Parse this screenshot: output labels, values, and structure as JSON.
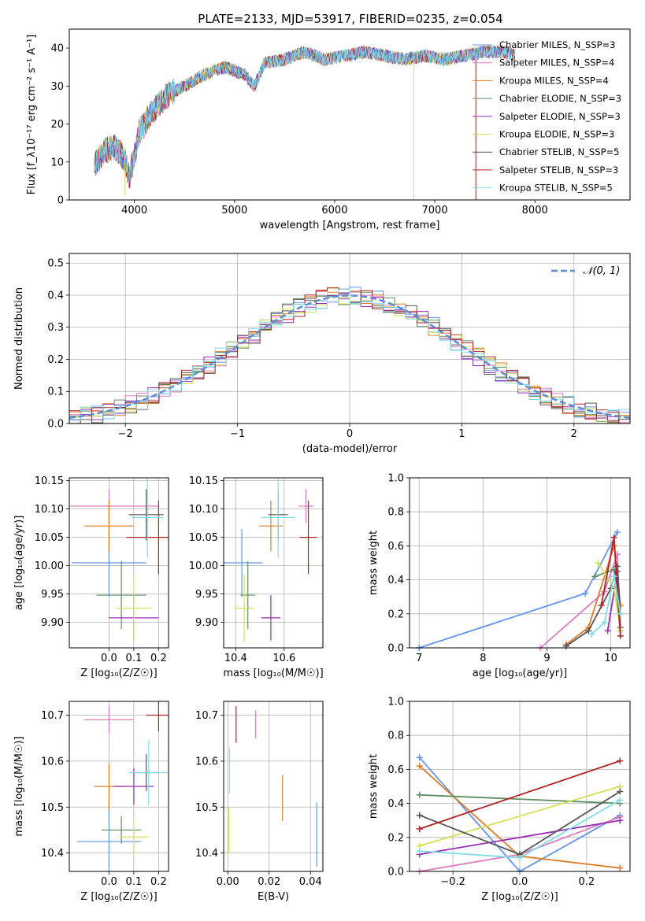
{
  "chart_data": [
    {
      "id": "spectrum",
      "type": "line",
      "title": "PLATE=2133, MJD=53917, FIBERID=0235, z=0.054",
      "xlabel": "wavelength [Angstrom, rest frame]",
      "ylabel": "Flux [f_λ10⁻¹⁷ erg cm⁻² s⁻¹ A⁻¹]",
      "xlim": [
        3350,
        8950
      ],
      "ylim": [
        0,
        45
      ],
      "xticks": [
        4000,
        5000,
        6000,
        7000,
        8000
      ],
      "yticks": [
        0,
        10,
        20,
        30,
        40
      ],
      "legend_position": "top-right",
      "continuum": {
        "x": [
          3600,
          3700,
          3800,
          3900,
          3950,
          4050,
          4200,
          4350,
          4500,
          4700,
          4900,
          5100,
          5200,
          5300,
          5500,
          5700,
          5900,
          6100,
          6300,
          6500,
          6700,
          6900,
          7100,
          7300,
          7500,
          7700,
          7800
        ],
        "y": [
          9,
          13,
          14,
          11,
          6,
          18,
          24,
          28,
          30,
          33,
          35,
          33,
          30,
          36,
          37,
          39,
          37,
          38,
          39,
          38,
          37,
          38,
          37,
          38,
          39,
          39,
          38
        ]
      },
      "series": [
        {
          "name": "Chabrier MILES, N_SSP=3",
          "color": "#6495ED"
        },
        {
          "name": "Salpeter MILES, N_SSP=4",
          "color": "#E07BC0"
        },
        {
          "name": "Kroupa MILES, N_SSP=4",
          "color": "#E07B24"
        },
        {
          "name": "Chabrier ELODIE, N_SSP=3",
          "color": "#5E8F5E"
        },
        {
          "name": "Salpeter ELODIE, N_SSP=3",
          "color": "#9B2DB5"
        },
        {
          "name": "Kroupa ELODIE, N_SSP=3",
          "color": "#D4E157"
        },
        {
          "name": "Chabrier STELIB, N_SSP=5",
          "color": "#555555"
        },
        {
          "name": "Salpeter STELIB, N_SSP=3",
          "color": "#B22222"
        },
        {
          "name": "Kroupa STELIB, N_SSP=5",
          "color": "#80DEEA"
        }
      ]
    },
    {
      "id": "residuals",
      "type": "line",
      "xlabel": "(data-model)/error",
      "ylabel": "Normed distribution",
      "xlim": [
        -2.5,
        2.5
      ],
      "ylim": [
        0,
        0.53
      ],
      "xticks": [
        -2,
        -1,
        0,
        1,
        2
      ],
      "yticks": [
        0.0,
        0.1,
        0.2,
        0.3,
        0.4,
        0.5
      ],
      "grid": true,
      "legend_position": "top-right",
      "legend": "𝒩(0, 1)",
      "normal_curve_color": "#5B8DD6"
    },
    {
      "id": "age_vs_Z",
      "type": "scatter",
      "xlabel": "Z [log₁₀(Z/Z☉)]",
      "ylabel": "age  [log₁₀(age/yr)]",
      "xlim": [
        -0.16,
        0.24
      ],
      "ylim": [
        9.855,
        10.155
      ],
      "xticks": [
        0.0,
        0.1,
        0.2
      ],
      "xticklabels": [
        "0.0",
        "0.1",
        "0.2"
      ],
      "yticks": [
        9.9,
        9.95,
        10.0,
        10.05,
        10.1,
        10.15
      ],
      "yticklabels": [
        "9.90",
        "9.95",
        "10.00",
        "10.05",
        "10.10",
        "10.15"
      ],
      "grid": true,
      "points": [
        {
          "x": -0.0,
          "y": 10.005,
          "xerr": 0.15,
          "yerr": 0.06,
          "color": "#6495ED"
        },
        {
          "x": 0.0,
          "y": 10.105,
          "xerr": 0.2,
          "yerr": 0.03,
          "color": "#E07BC0"
        },
        {
          "x": 0.0,
          "y": 10.07,
          "xerr": 0.1,
          "yerr": 0.045,
          "color": "#E07B24"
        },
        {
          "x": 0.05,
          "y": 9.948,
          "xerr": 0.1,
          "yerr": 0.06,
          "color": "#5E8F5E"
        },
        {
          "x": 0.1,
          "y": 9.908,
          "xerr": 0.1,
          "yerr": 0.04,
          "color": "#9B2DB5"
        },
        {
          "x": 0.1,
          "y": 9.925,
          "xerr": 0.07,
          "yerr": 0.06,
          "color": "#D4E157"
        },
        {
          "x": 0.15,
          "y": 10.09,
          "xerr": 0.07,
          "yerr": 0.045,
          "color": "#555555"
        },
        {
          "x": 0.2,
          "y": 10.05,
          "xerr": 0.13,
          "yerr": 0.065,
          "color": "#B22222"
        },
        {
          "x": 0.155,
          "y": 10.085,
          "xerr": 0.065,
          "yerr": 0.07,
          "color": "#80DEEA"
        }
      ]
    },
    {
      "id": "age_vs_mass",
      "type": "scatter",
      "xlabel": "mass [log₁₀(M/M☉)]",
      "ylabel": "",
      "xlim": [
        10.35,
        10.76
      ],
      "ylim": [
        9.855,
        10.155
      ],
      "xticks": [
        10.4,
        10.6
      ],
      "xticklabels": [
        "10.4",
        "10.6"
      ],
      "yticks": [
        9.9,
        9.95,
        10.0,
        10.05,
        10.1,
        10.15
      ],
      "yticklabels": [
        "9.90",
        "9.95",
        "10.00",
        "10.05",
        "10.10",
        "10.15"
      ],
      "grid": true,
      "points": [
        {
          "x": 10.425,
          "y": 10.005,
          "xerr": 0.085,
          "yerr": 0.06,
          "color": "#6495ED"
        },
        {
          "x": 10.69,
          "y": 10.105,
          "xerr": 0.03,
          "yerr": 0.03,
          "color": "#E07BC0"
        },
        {
          "x": 10.545,
          "y": 10.07,
          "xerr": 0.05,
          "yerr": 0.045,
          "color": "#E07B24"
        },
        {
          "x": 10.45,
          "y": 9.948,
          "xerr": 0.03,
          "yerr": 0.06,
          "color": "#5E8F5E"
        },
        {
          "x": 10.545,
          "y": 9.908,
          "xerr": 0.04,
          "yerr": 0.04,
          "color": "#9B2DB5"
        },
        {
          "x": 10.435,
          "y": 9.925,
          "xerr": 0.04,
          "yerr": 0.06,
          "color": "#D4E157"
        },
        {
          "x": 10.575,
          "y": 10.09,
          "xerr": 0.04,
          "yerr": 0.045,
          "color": "#555555"
        },
        {
          "x": 10.7,
          "y": 10.05,
          "xerr": 0.035,
          "yerr": 0.065,
          "color": "#B22222"
        },
        {
          "x": 10.575,
          "y": 10.085,
          "xerr": 0.07,
          "yerr": 0.07,
          "color": "#80DEEA"
        }
      ]
    },
    {
      "id": "massweight_vs_age",
      "type": "line",
      "xlabel": "age  [log₁₀(age/yr)]",
      "ylabel": "mass weight",
      "xlim": [
        6.85,
        10.3
      ],
      "ylim": [
        0,
        1
      ],
      "xticks": [
        7,
        8,
        9,
        10
      ],
      "yticks": [
        0.0,
        0.2,
        0.4,
        0.6,
        0.8,
        1.0
      ],
      "grid": true,
      "series": [
        {
          "color": "#6495ED",
          "x": [
            7.0,
            9.6,
            10.1
          ],
          "y": [
            0.0,
            0.32,
            0.68
          ]
        },
        {
          "color": "#E07BC0",
          "x": [
            8.9,
            9.9,
            10.1,
            10.15
          ],
          "y": [
            0.0,
            0.33,
            0.55,
            0.12
          ]
        },
        {
          "color": "#E07B24",
          "x": [
            9.3,
            9.65,
            10.05,
            10.15
          ],
          "y": [
            0.02,
            0.12,
            0.6,
            0.25
          ]
        },
        {
          "color": "#5E8F5E",
          "x": [
            9.75,
            10.05,
            10.15
          ],
          "y": [
            0.42,
            0.46,
            0.12
          ]
        },
        {
          "color": "#9B2DB5",
          "x": [
            9.95,
            10.1,
            10.15
          ],
          "y": [
            0.1,
            0.45,
            0.1
          ]
        },
        {
          "color": "#D4E157",
          "x": [
            9.8,
            10.05,
            10.15
          ],
          "y": [
            0.5,
            0.35,
            0.1
          ]
        },
        {
          "color": "#555555",
          "x": [
            9.3,
            9.65,
            10.0,
            10.1,
            10.15
          ],
          "y": [
            0.01,
            0.1,
            0.35,
            0.48,
            0.2
          ]
        },
        {
          "color": "#B22222",
          "x": [
            9.85,
            10.05,
            10.15
          ],
          "y": [
            0.25,
            0.65,
            0.07
          ]
        },
        {
          "color": "#80DEEA",
          "x": [
            9.7,
            9.9,
            10.05,
            10.15
          ],
          "y": [
            0.08,
            0.15,
            0.42,
            0.2
          ]
        }
      ]
    },
    {
      "id": "mass_vs_Z",
      "type": "scatter",
      "xlabel": "Z [log₁₀(Z/Z☉)]",
      "ylabel": "mass [log₁₀(M/M☉)]",
      "xlim": [
        -0.16,
        0.24
      ],
      "ylim": [
        10.36,
        10.73
      ],
      "xticks": [
        0.0,
        0.1,
        0.2
      ],
      "xticklabels": [
        "0.0",
        "0.1",
        "0.2"
      ],
      "yticks": [
        10.4,
        10.5,
        10.6,
        10.7
      ],
      "yticklabels": [
        "10.4",
        "10.5",
        "10.6",
        "10.7"
      ],
      "grid": true,
      "points": [
        {
          "x": -0.0,
          "y": 10.425,
          "xerr": 0.13,
          "yerr": 0.085,
          "color": "#6495ED"
        },
        {
          "x": 0.0,
          "y": 10.69,
          "xerr": 0.1,
          "yerr": 0.03,
          "color": "#E07BC0"
        },
        {
          "x": 0.0,
          "y": 10.545,
          "xerr": 0.06,
          "yerr": 0.05,
          "color": "#E07B24"
        },
        {
          "x": 0.05,
          "y": 10.45,
          "xerr": 0.08,
          "yerr": 0.03,
          "color": "#5E8F5E"
        },
        {
          "x": 0.1,
          "y": 10.545,
          "xerr": 0.08,
          "yerr": 0.04,
          "color": "#9B2DB5"
        },
        {
          "x": 0.1,
          "y": 10.435,
          "xerr": 0.06,
          "yerr": 0.04,
          "color": "#D4E157"
        },
        {
          "x": 0.15,
          "y": 10.575,
          "xerr": 0.05,
          "yerr": 0.04,
          "color": "#555555"
        },
        {
          "x": 0.2,
          "y": 10.7,
          "xerr": 0.05,
          "yerr": 0.035,
          "color": "#B22222"
        },
        {
          "x": 0.16,
          "y": 10.575,
          "xerr": 0.08,
          "yerr": 0.07,
          "color": "#80DEEA"
        }
      ]
    },
    {
      "id": "mass_vs_ebv",
      "type": "scatter",
      "xlabel": "E(B-V)",
      "ylabel": "",
      "xlim": [
        -0.002,
        0.046
      ],
      "ylim": [
        10.36,
        10.73
      ],
      "xticks": [
        0.0,
        0.02,
        0.04
      ],
      "xticklabels": [
        "0.00",
        "0.02",
        "0.04"
      ],
      "yticks": [
        10.4,
        10.5,
        10.6,
        10.7
      ],
      "yticklabels": [
        "10.4",
        "10.5",
        "10.6",
        "10.7"
      ],
      "grid": true,
      "points": [
        {
          "x": 0.043,
          "y": 10.44,
          "xerr": 0,
          "yerr": 0.07,
          "color": "#6495ED"
        },
        {
          "x": 0.0135,
          "y": 10.68,
          "xerr": 0,
          "yerr": 0.03,
          "color": "#E07BC0"
        },
        {
          "x": 0.0265,
          "y": 10.52,
          "xerr": 0,
          "yerr": 0.05,
          "color": "#E07B24"
        },
        {
          "x": 0.0005,
          "y": 10.45,
          "xerr": 0,
          "yerr": 0.05,
          "color": "#D4E157"
        },
        {
          "x": 0.004,
          "y": 10.68,
          "xerr": 0,
          "yerr": 0.04,
          "color": "#B22222"
        },
        {
          "x": 0.0008,
          "y": 10.58,
          "xerr": 0,
          "yerr": 0.05,
          "color": "#80DEEA"
        }
      ]
    },
    {
      "id": "massweight_vs_Z",
      "type": "line",
      "xlabel": "Z [log₁₀(Z/Z☉)]",
      "ylabel": "mass weight",
      "xlim": [
        -0.33,
        0.33
      ],
      "ylim": [
        0,
        1
      ],
      "xticks": [
        -0.2,
        0.0,
        0.2
      ],
      "xticklabels": [
        "−0.2",
        "0.0",
        "0.2"
      ],
      "yticks": [
        0.0,
        0.2,
        0.4,
        0.6,
        0.8,
        1.0
      ],
      "grid": true,
      "series": [
        {
          "color": "#6495ED",
          "x": [
            -0.3,
            0.0,
            0.3
          ],
          "y": [
            0.67,
            0.0,
            0.33
          ]
        },
        {
          "color": "#E07BC0",
          "x": [
            -0.3,
            0.0,
            0.3
          ],
          "y": [
            0.0,
            0.1,
            0.32
          ]
        },
        {
          "color": "#E07B24",
          "x": [
            -0.3,
            0.0,
            0.3
          ],
          "y": [
            0.62,
            0.09,
            0.02
          ]
        },
        {
          "color": "#5E8F5E",
          "x": [
            -0.3,
            0.3
          ],
          "y": [
            0.45,
            0.4
          ]
        },
        {
          "color": "#9B2DB5",
          "x": [
            -0.3,
            0.3
          ],
          "y": [
            0.1,
            0.3
          ]
        },
        {
          "color": "#D4E157",
          "x": [
            -0.3,
            0.3
          ],
          "y": [
            0.15,
            0.5
          ]
        },
        {
          "color": "#555555",
          "x": [
            -0.3,
            0.0,
            0.3
          ],
          "y": [
            0.33,
            0.1,
            0.47
          ]
        },
        {
          "color": "#B22222",
          "x": [
            -0.3,
            0.3
          ],
          "y": [
            0.25,
            0.65
          ]
        },
        {
          "color": "#80DEEA",
          "x": [
            -0.3,
            0.0,
            0.3
          ],
          "y": [
            0.12,
            0.08,
            0.42
          ]
        }
      ]
    }
  ]
}
